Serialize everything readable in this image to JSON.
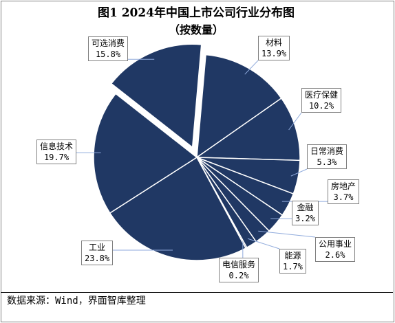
{
  "title": "图1 2024年中国上市公司行业分布图",
  "subtitle": "（按数量）",
  "source": "数据来源：Wind，界面智库整理",
  "colors": {
    "slice": "#203864",
    "edge": "#ffffff",
    "leader": "#8faadc"
  },
  "chart_data": {
    "type": "pie",
    "unit": "%",
    "title": "图1 2024年中国上市公司行业分布图",
    "subtitle": "（按数量）",
    "slices": [
      {
        "label": "材料",
        "value": 13.9,
        "value_text": "13.9%"
      },
      {
        "label": "医疗保健",
        "value": 10.2,
        "value_text": "10.2%"
      },
      {
        "label": "日常消费",
        "value": 5.3,
        "value_text": "5.3%"
      },
      {
        "label": "房地产",
        "value": 3.7,
        "value_text": "3.7%"
      },
      {
        "label": "金融",
        "value": 3.2,
        "value_text": "3.2%"
      },
      {
        "label": "公用事业",
        "value": 2.6,
        "value_text": "2.6%"
      },
      {
        "label": "能源",
        "value": 1.7,
        "value_text": "1.7%"
      },
      {
        "label": "电信服务",
        "value": 0.2,
        "value_text": "0.2%"
      },
      {
        "label": "工业",
        "value": 23.8,
        "value_text": "23.8%"
      },
      {
        "label": "信息技术",
        "value": 19.7,
        "value_text": "19.7%"
      },
      {
        "label": "可选消费",
        "value": 15.8,
        "value_text": "15.8%"
      }
    ],
    "exploded": [
      "可选消费"
    ],
    "legend": "none"
  }
}
